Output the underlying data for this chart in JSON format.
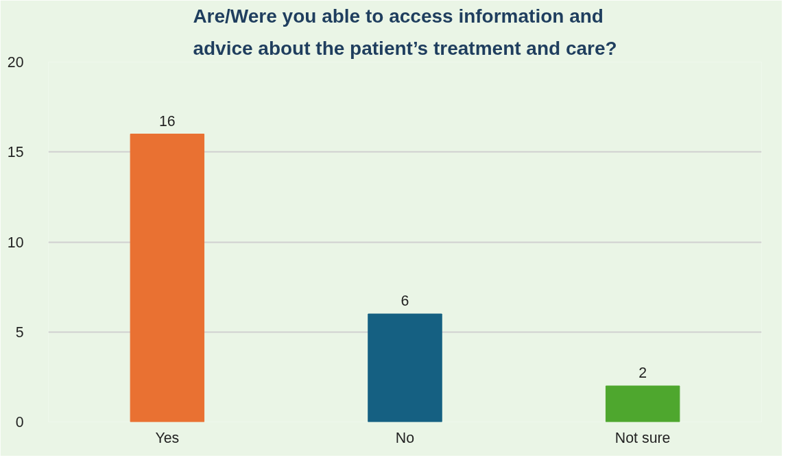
{
  "chart_data": {
    "type": "bar",
    "title": "Are/Were you able to access information and advice about the patient’s treatment and care?",
    "categories": [
      "Yes",
      "No",
      "Not sure"
    ],
    "values": [
      16,
      6,
      2
    ],
    "colors": [
      "#e97132",
      "#156082",
      "#4ea72e"
    ],
    "ylim": [
      0,
      20
    ],
    "yticks": [
      0,
      5,
      10,
      15,
      20
    ],
    "grid": "y",
    "data_labels": true
  }
}
